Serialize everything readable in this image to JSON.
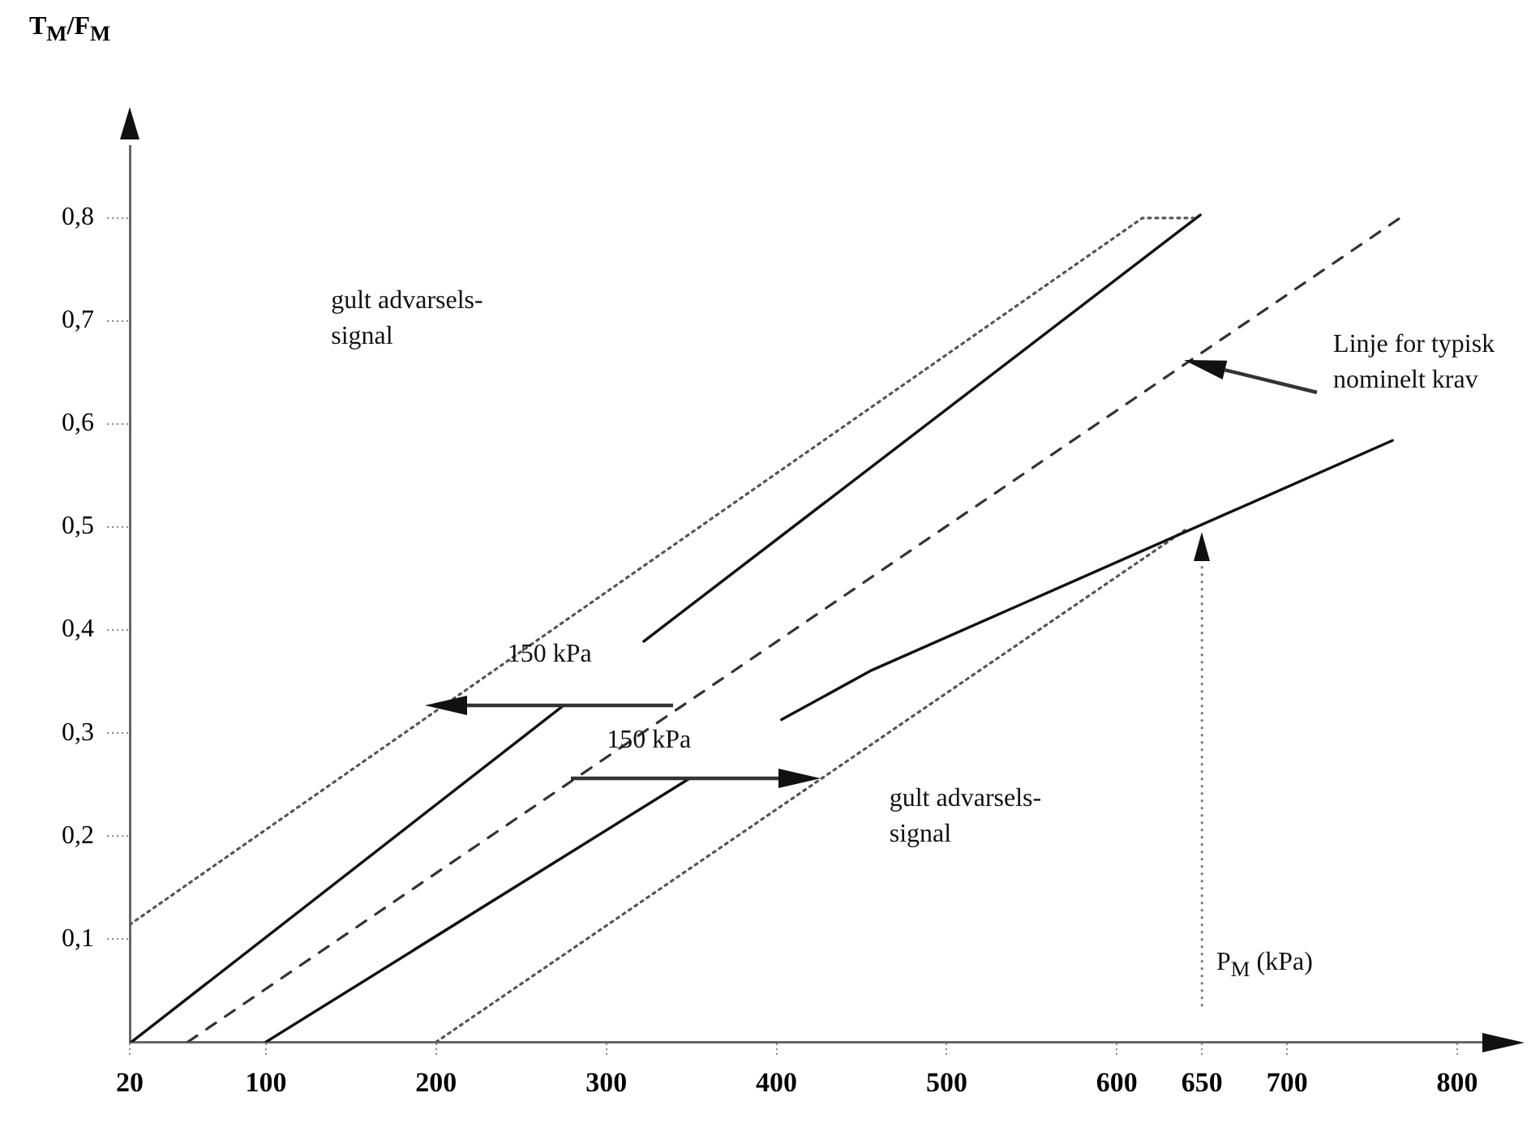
{
  "chart_data": {
    "type": "line",
    "ylabel": "T$_{M}$/F$_{M}$",
    "xlabel": "P$_{M}$ (kPa)",
    "xlim": [
      20,
      830
    ],
    "xticks": [
      20,
      100,
      200,
      300,
      400,
      500,
      600,
      650,
      700,
      800
    ],
    "ylim": [
      0,
      0.87
    ],
    "yticks": [
      {
        "value": 0.1,
        "label": "0,1"
      },
      {
        "value": 0.2,
        "label": "0,2"
      },
      {
        "value": 0.3,
        "label": "0,3"
      },
      {
        "value": 0.4,
        "label": "0,4"
      },
      {
        "value": 0.5,
        "label": "0,5"
      },
      {
        "value": 0.6,
        "label": "0,6"
      },
      {
        "value": 0.7,
        "label": "0,7"
      },
      {
        "value": 0.8,
        "label": "0,8"
      }
    ],
    "marker": "none",
    "series": [
      {
        "color": "#555555",
        "line_style": "dotted",
        "x": [
          20,
          615,
          645
        ],
        "values": [
          0.114,
          0.8,
          0.8
        ]
      },
      {
        "color": "#111111",
        "line_style": "solid",
        "x": [
          21,
          275,
          300,
          322,
          649
        ],
        "values": [
          0,
          0.327,
          null,
          0.389,
          0.803
        ]
      },
      {
        "color": "#333333",
        "line_style": "dashed",
        "x": [
          54,
          769
        ],
        "values": [
          0,
          0.803
        ]
      },
      {
        "color": "#111111",
        "line_style": "solid",
        "x": [
          100,
          349,
          376,
          403,
          456,
          762
        ],
        "values": [
          0,
          0.256,
          null,
          0.313,
          0.361,
          0.584
        ]
      },
      {
        "color": "#555555",
        "line_style": "dotted",
        "x": [
          200,
          640
        ],
        "values": [
          0,
          0.497
        ]
      }
    ],
    "ref_lines": [
      {
        "axis": "x",
        "value": 650,
        "color": "#777777",
        "line_style": "dotted"
      }
    ],
    "annotations": [
      "gult advarsels-\nsignal",
      "150 kPa",
      "150 kPa",
      "gult advarsels-\nsignal",
      "Linje for typisk\nnominelt krav"
    ]
  }
}
